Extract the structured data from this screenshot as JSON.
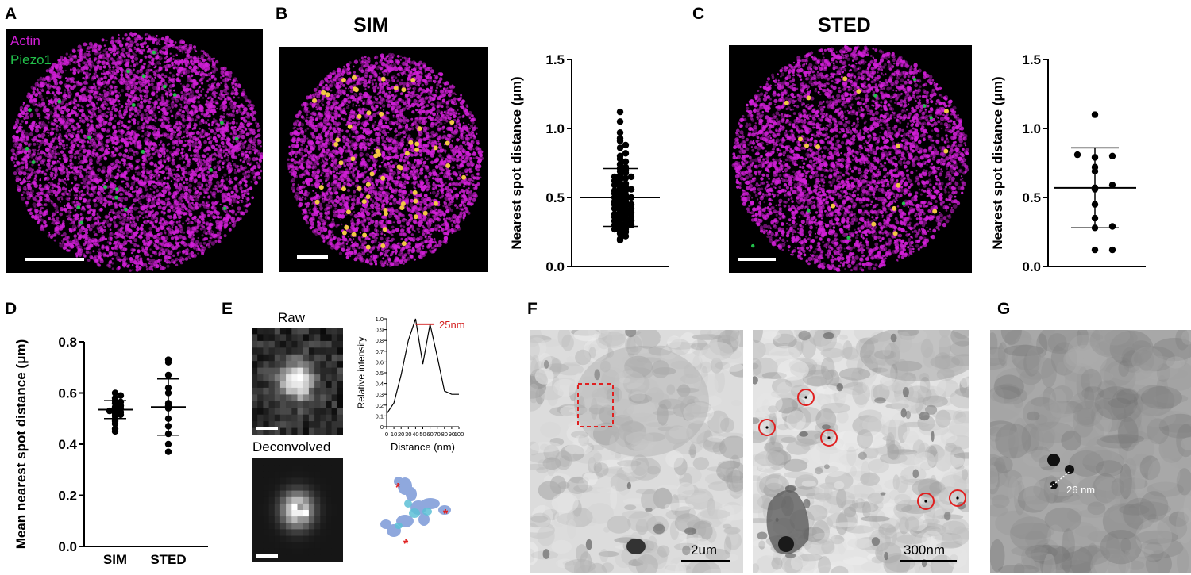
{
  "panels": {
    "a": {
      "letter": "A",
      "legend": [
        "Actin",
        "Piezo1"
      ]
    },
    "b": {
      "letter": "B",
      "title": "SIM"
    },
    "c": {
      "letter": "C",
      "title": "STED"
    },
    "d": {
      "letter": "D"
    },
    "e": {
      "letter": "E",
      "raw_label": "Raw",
      "deconv_label": "Deconvolved"
    },
    "f": {
      "letter": "F",
      "scale_left": "2um",
      "scale_right": "300nm"
    },
    "g": {
      "letter": "G",
      "distance_label": "26 nm"
    }
  },
  "colors": {
    "actin": "#d21fd8",
    "piezo1": "#22c04a",
    "spot": "#f2c744",
    "ring": "#e02020",
    "peak_line": "#d42020"
  },
  "chart_data": [
    {
      "type": "scatter",
      "panel": "B",
      "ylabel": "Nearest spot distance (μm)",
      "ylim": [
        0,
        1.5
      ],
      "yticks": [
        "0.0",
        "0.5",
        "1.0",
        "1.5"
      ],
      "values": [
        1.12,
        1.05,
        0.97,
        0.93,
        0.91,
        0.88,
        0.86,
        0.82,
        0.8,
        0.78,
        0.76,
        0.74,
        0.72,
        0.71,
        0.7,
        0.69,
        0.68,
        0.66,
        0.65,
        0.64,
        0.63,
        0.62,
        0.6,
        0.59,
        0.58,
        0.57,
        0.56,
        0.55,
        0.54,
        0.53,
        0.52,
        0.51,
        0.5,
        0.49,
        0.48,
        0.47,
        0.46,
        0.45,
        0.44,
        0.43,
        0.42,
        0.41,
        0.4,
        0.39,
        0.38,
        0.37,
        0.36,
        0.35,
        0.34,
        0.33,
        0.32,
        0.31,
        0.3,
        0.29,
        0.28,
        0.27,
        0.26,
        0.25,
        0.24,
        0.22,
        0.2,
        0.19,
        0.36,
        0.38,
        0.42,
        0.45,
        0.33,
        0.3,
        0.27,
        0.47,
        0.5,
        0.55,
        0.6,
        0.65
      ],
      "mean": 0.5,
      "sd": 0.21
    },
    {
      "type": "scatter",
      "panel": "C",
      "ylabel": "Nearest spot distance (μm)",
      "ylim": [
        0,
        1.5
      ],
      "yticks": [
        "0.0",
        "0.5",
        "1.0",
        "1.5"
      ],
      "values": [
        1.1,
        0.81,
        0.8,
        0.79,
        0.72,
        0.69,
        0.59,
        0.57,
        0.56,
        0.45,
        0.35,
        0.29,
        0.28,
        0.12,
        0.12
      ],
      "mean": 0.57,
      "sd": 0.29
    },
    {
      "type": "scatter",
      "panel": "D",
      "ylabel": "Mean nearest spot distance (μm)",
      "ylim": [
        0,
        0.8
      ],
      "yticks": [
        "0.0",
        "0.2",
        "0.4",
        "0.6",
        "0.8"
      ],
      "categories": [
        "SIM",
        "STED"
      ],
      "series": [
        {
          "values": [
            0.6,
            0.59,
            0.58,
            0.57,
            0.565,
            0.56,
            0.55,
            0.545,
            0.54,
            0.535,
            0.53,
            0.525,
            0.52,
            0.515,
            0.51,
            0.5,
            0.49,
            0.48,
            0.46,
            0.45
          ],
          "mean": 0.535,
          "sd": 0.035
        },
        {
          "values": [
            0.73,
            0.72,
            0.67,
            0.62,
            0.6,
            0.56,
            0.55,
            0.54,
            0.5,
            0.47,
            0.44,
            0.4,
            0.37
          ],
          "mean": 0.545,
          "sd": 0.11
        }
      ]
    },
    {
      "type": "line",
      "panel": "E",
      "xlabel": "Distance (nm)",
      "ylabel": "Relative intensity",
      "xlim": [
        0,
        100
      ],
      "ylim": [
        0,
        1.0
      ],
      "xticks": [
        "0",
        "10",
        "20",
        "30",
        "40",
        "50",
        "60",
        "70",
        "80",
        "90",
        "100"
      ],
      "yticks": [
        "0",
        "0.1",
        "0.2",
        "0.3",
        "0.4",
        "0.5",
        "0.6",
        "0.7",
        "0.8",
        "0.9",
        "1.0"
      ],
      "x": [
        0,
        10,
        20,
        30,
        40,
        50,
        60,
        70,
        80,
        90,
        100
      ],
      "y": [
        0.12,
        0.22,
        0.48,
        0.8,
        1.0,
        0.58,
        0.95,
        0.65,
        0.33,
        0.3,
        0.3
      ],
      "annotation": "25nm"
    }
  ]
}
